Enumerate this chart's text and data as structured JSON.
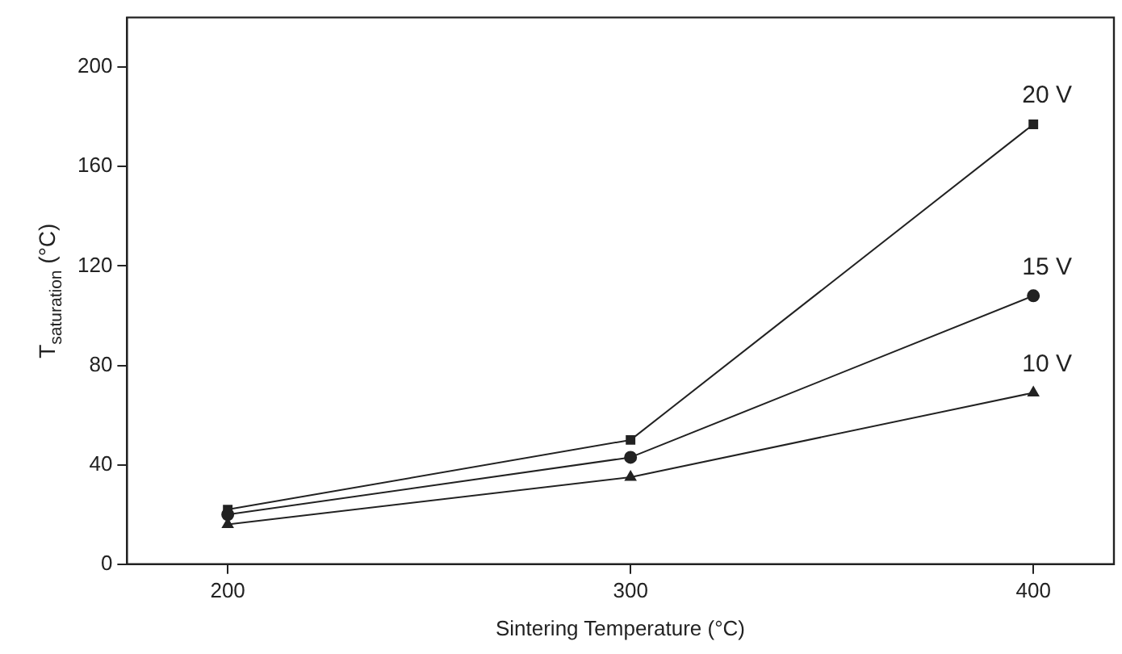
{
  "chart_data": {
    "type": "line",
    "xlabel": "Sintering Temperature (°C)",
    "ylabel": "T$_{saturation}$ (°C)",
    "x": [
      200,
      300,
      400
    ],
    "series": [
      {
        "name": "20 V",
        "color": "#222222",
        "marker": "square",
        "values": [
          22,
          50,
          177
        ]
      },
      {
        "name": "15 V",
        "color": "#222222",
        "marker": "circle",
        "values": [
          20,
          43,
          108
        ]
      },
      {
        "name": "10 V",
        "color": "#222222",
        "marker": "triangle",
        "values": [
          16,
          35,
          69
        ]
      }
    ],
    "xlim": [
      175,
      420
    ],
    "xticks": [
      200,
      300,
      400
    ],
    "ylim": [
      0,
      220
    ],
    "yticks": [
      0,
      40,
      80,
      120,
      160,
      200
    ],
    "grid": false,
    "legend": false,
    "line_style": "solid"
  }
}
